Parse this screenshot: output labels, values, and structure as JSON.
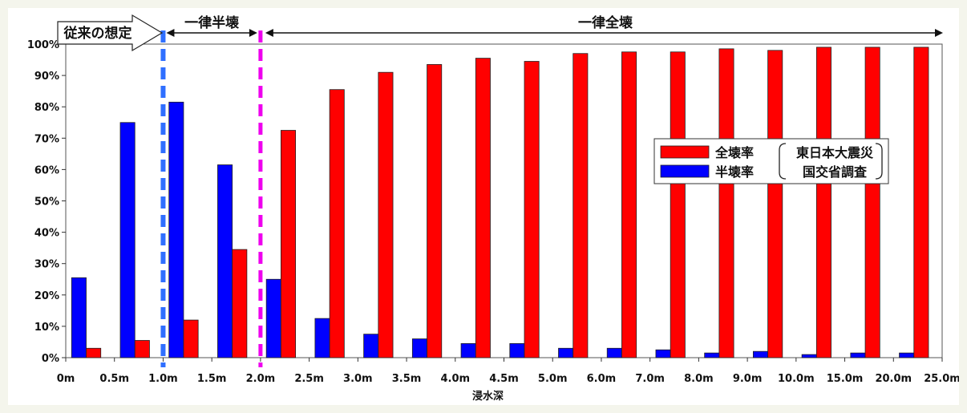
{
  "chart_data": {
    "type": "bar",
    "xlabel": "浸水深",
    "ylabel": "",
    "ylim": [
      0,
      100
    ],
    "ytick_labels": [
      "0%",
      "10%",
      "20%",
      "30%",
      "40%",
      "50%",
      "60%",
      "70%",
      "80%",
      "90%",
      "100%"
    ],
    "x_boundary_labels": [
      "0m",
      "0.5m",
      "1.0m",
      "1.5m",
      "2.0m",
      "2.5m",
      "3.0m",
      "3.5m",
      "4.0m",
      "4.5m",
      "5.0m",
      "6.0m",
      "7.0m",
      "8.0m",
      "9.0m",
      "10.0m",
      "15.0m",
      "20.0m",
      "25.0m"
    ],
    "series": [
      {
        "name": "全壊率",
        "color": "#ff0000",
        "values": [
          3,
          5.5,
          12,
          34.5,
          72.5,
          85.5,
          91,
          93.5,
          95.5,
          94.5,
          97,
          97.5,
          97.5,
          98.5,
          98,
          99,
          99,
          99
        ]
      },
      {
        "name": "半壊率",
        "color": "#0000ff",
        "values": [
          25.5,
          75,
          81.5,
          61.5,
          25,
          12.5,
          7.5,
          6,
          4.5,
          4.5,
          3,
          3,
          2.5,
          1.5,
          2,
          1,
          1.5,
          1.5
        ]
      }
    ],
    "legend": {
      "position": "right",
      "note": "東日本大震災",
      "note2": "国交省調査"
    },
    "annotations": {
      "assumption": "従来の想定",
      "half": "一律半壊",
      "full": "一律全壊",
      "blue_dashed_at": "1.0m",
      "magenta_dashed_at": "2.0m"
    },
    "grid": false
  }
}
